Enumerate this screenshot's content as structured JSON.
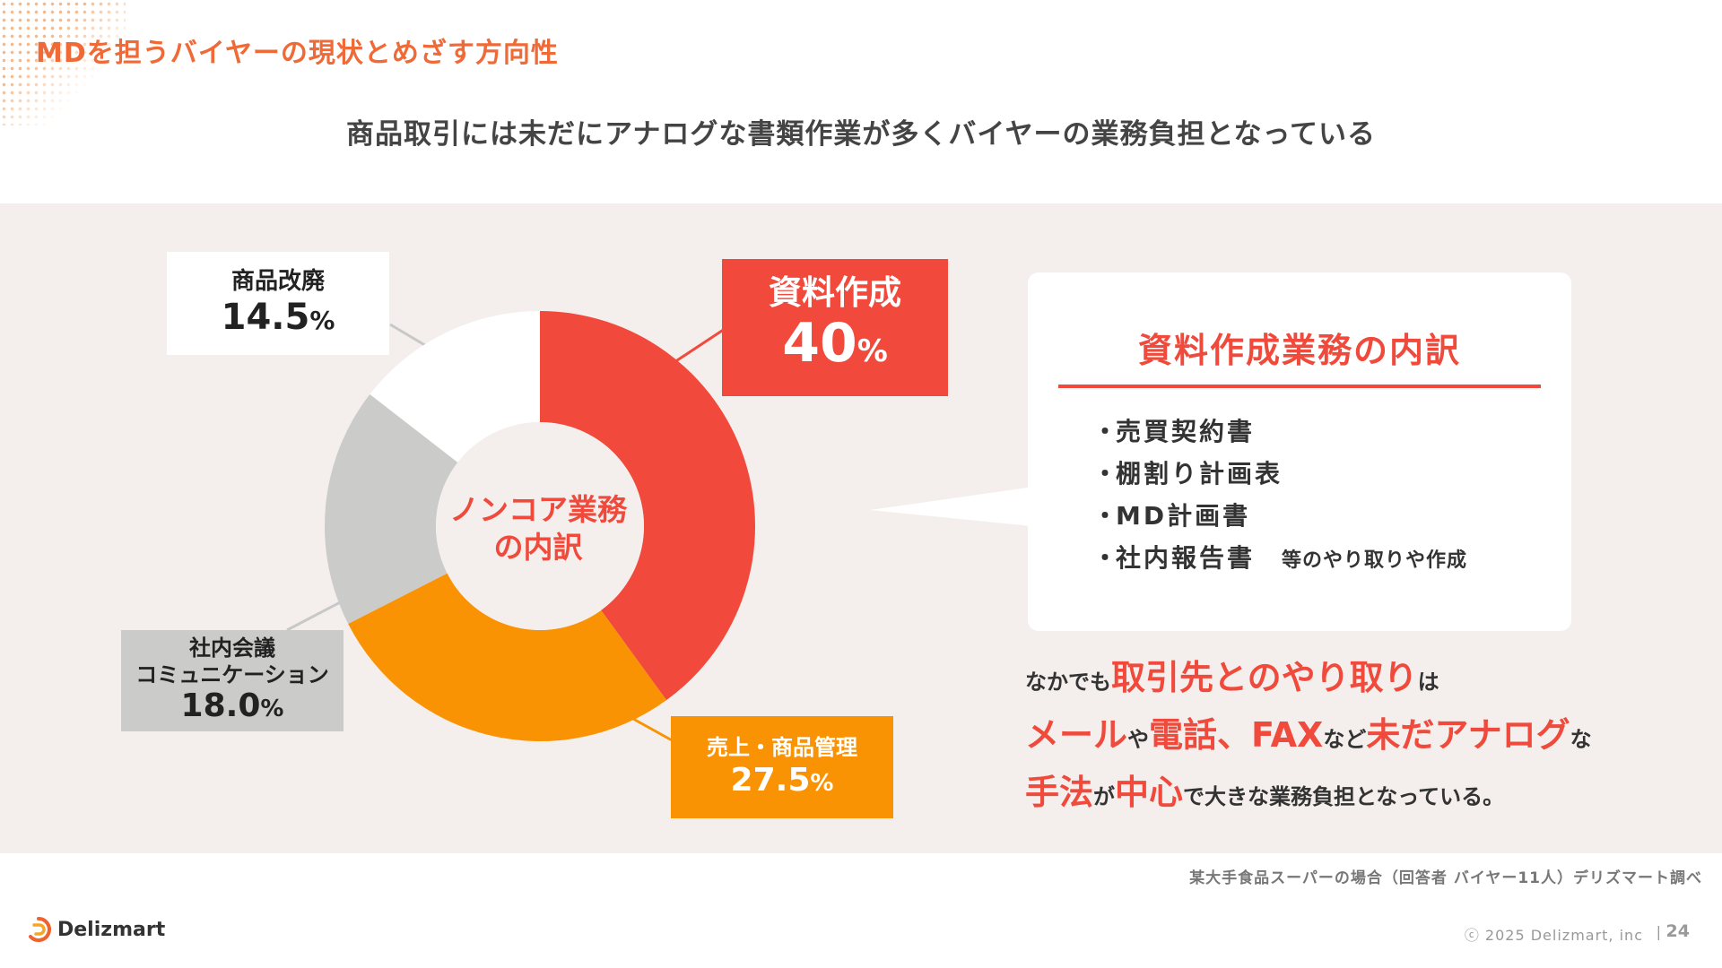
{
  "header": {
    "title": "MDを担うバイヤーの現状とめざす方向性",
    "headline": "商品取引には未だにアナログな書類作業が多くバイヤーの業務負担となっている"
  },
  "chart_data": {
    "type": "pie",
    "title": "ノンコア業務の内訳",
    "center_label": [
      "ノンコア業務",
      "の内訳"
    ],
    "categories": [
      "資料作成",
      "売上・商品管理",
      "社内会議コミュニケーション",
      "商品改廃"
    ],
    "values": [
      40,
      27.5,
      18.0,
      14.5
    ],
    "labels": [
      {
        "name": "資料作成",
        "value": "40",
        "unit": "%"
      },
      {
        "name": "売上・商品管理",
        "value": "27.5",
        "unit": "%"
      },
      {
        "name_lines": [
          "社内会議",
          "コミュニケーション"
        ],
        "value": "18.0",
        "unit": "%"
      },
      {
        "name": "商品改廃",
        "value": "14.5",
        "unit": "%"
      }
    ],
    "colors": [
      "#f14a3c",
      "#fa9304",
      "#cbcbca",
      "#ffffff"
    ],
    "legend": "none"
  },
  "callout": {
    "title": "資料作成業務の内訳",
    "bullet": "・",
    "items": [
      "売買契約書",
      "棚割り計画表",
      "MD計画書",
      "社内報告書"
    ],
    "note": "等のやり取りや作成"
  },
  "summary": {
    "l1": [
      "なかでも",
      "取引先とのやり取り",
      "は"
    ],
    "l2": [
      "メール",
      "や",
      "電話、FAX",
      "など",
      "未だアナログ",
      "な"
    ],
    "l3": [
      "手法",
      "が",
      "中心",
      "で大きな業務負担となっている。"
    ]
  },
  "footer": {
    "source": "某大手食品スーパーの場合（回答者 バイヤー11人）デリズマート調べ",
    "logo_text": "Delizmart",
    "copyright": "ⓒ 2025 Delizmart, inc",
    "separator": "|",
    "page_number": "24"
  },
  "colors": {
    "accent": "#ef4a3b",
    "title_orange": "#ef6a37",
    "panel_bg": "#f4efed"
  }
}
